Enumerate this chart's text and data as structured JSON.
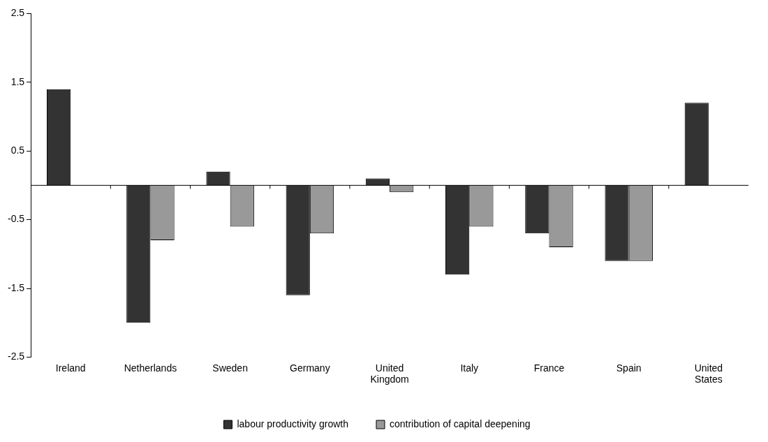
{
  "chart_data": {
    "type": "bar",
    "categories": [
      "Ireland",
      "Netherlands",
      "Sweden",
      "Germany",
      "United Kingdom",
      "Italy",
      "France",
      "Spain",
      "United States"
    ],
    "series": [
      {
        "name": "labour productivity growth",
        "color": "#333333",
        "values": [
          1.4,
          -2.0,
          0.2,
          -1.6,
          0.1,
          -1.3,
          -0.7,
          -1.1,
          1.2
        ]
      },
      {
        "name": "contribution of capital deepening",
        "color": "#999999",
        "values": [
          null,
          -0.8,
          -0.6,
          -0.7,
          -0.1,
          -0.6,
          -0.9,
          -1.1,
          null
        ]
      }
    ],
    "ylim": [
      -2.5,
      2.5
    ],
    "yticks": [
      -2.5,
      -1.5,
      -0.5,
      0.5,
      1.5,
      2.5
    ],
    "grid": false,
    "legend": "bottom"
  }
}
